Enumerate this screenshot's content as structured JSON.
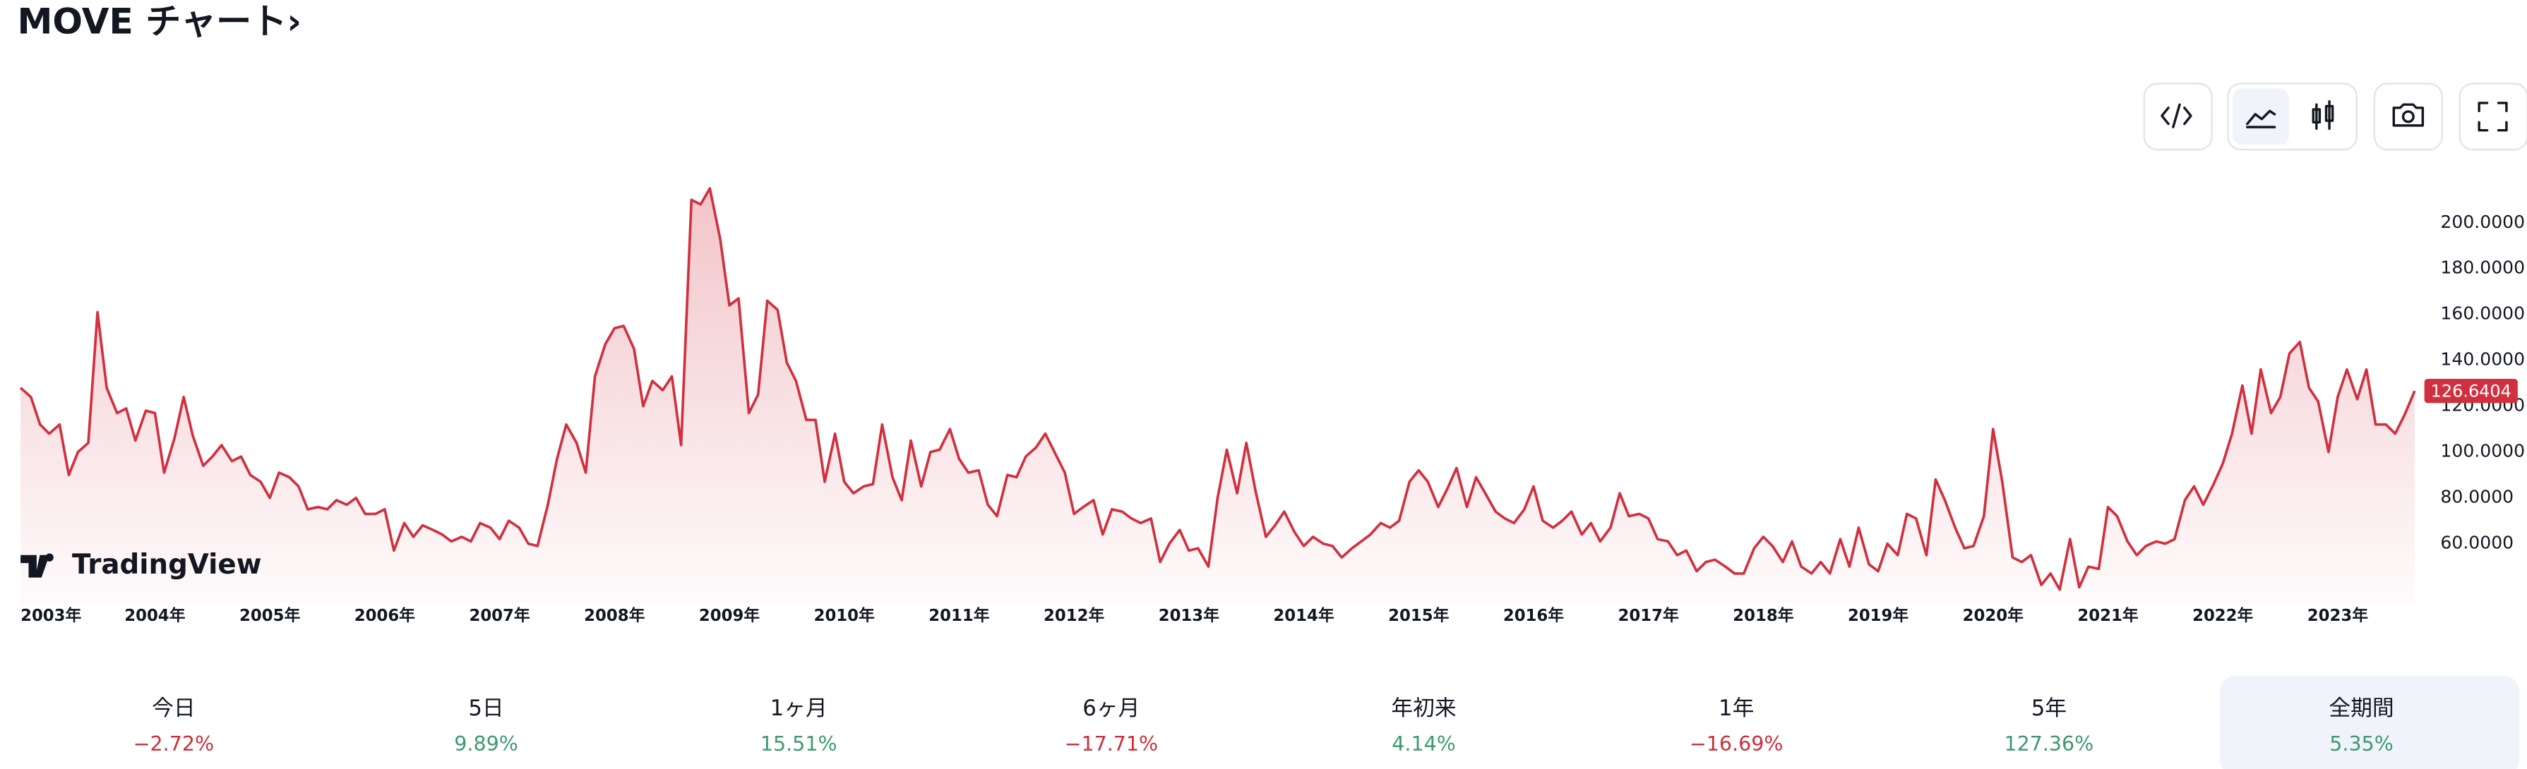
{
  "title": "MOVE チャート›",
  "watermark": "TradingView",
  "chart_data": {
    "type": "line",
    "x": [
      2002.83,
      2002.92,
      2003.0,
      2003.08,
      2003.17,
      2003.25,
      2003.33,
      2003.42,
      2003.5,
      2003.58,
      2003.67,
      2003.75,
      2003.83,
      2003.92,
      2004.0,
      2004.08,
      2004.17,
      2004.25,
      2004.33,
      2004.42,
      2004.5,
      2004.58,
      2004.67,
      2004.75,
      2004.83,
      2004.92,
      2005.0,
      2005.08,
      2005.17,
      2005.25,
      2005.33,
      2005.42,
      2005.5,
      2005.58,
      2005.67,
      2005.75,
      2005.83,
      2005.92,
      2006.0,
      2006.08,
      2006.17,
      2006.25,
      2006.33,
      2006.42,
      2006.5,
      2006.58,
      2006.67,
      2006.75,
      2006.83,
      2006.92,
      2007.0,
      2007.08,
      2007.17,
      2007.25,
      2007.33,
      2007.42,
      2007.5,
      2007.58,
      2007.67,
      2007.75,
      2007.83,
      2007.92,
      2008.0,
      2008.08,
      2008.17,
      2008.25,
      2008.33,
      2008.42,
      2008.5,
      2008.58,
      2008.67,
      2008.75,
      2008.83,
      2008.92,
      2009.0,
      2009.08,
      2009.17,
      2009.25,
      2009.33,
      2009.42,
      2009.5,
      2009.58,
      2009.67,
      2009.75,
      2009.83,
      2009.92,
      2010.0,
      2010.08,
      2010.17,
      2010.25,
      2010.33,
      2010.42,
      2010.5,
      2010.58,
      2010.67,
      2010.75,
      2010.83,
      2010.92,
      2011.0,
      2011.08,
      2011.17,
      2011.25,
      2011.33,
      2011.42,
      2011.5,
      2011.58,
      2011.67,
      2011.75,
      2011.83,
      2011.92,
      2012.0,
      2012.08,
      2012.17,
      2012.25,
      2012.33,
      2012.42,
      2012.5,
      2012.58,
      2012.67,
      2012.75,
      2012.83,
      2012.92,
      2013.0,
      2013.08,
      2013.17,
      2013.25,
      2013.33,
      2013.42,
      2013.5,
      2013.58,
      2013.67,
      2013.75,
      2013.83,
      2013.92,
      2014.0,
      2014.08,
      2014.17,
      2014.25,
      2014.33,
      2014.42,
      2014.5,
      2014.58,
      2014.67,
      2014.75,
      2014.83,
      2014.92,
      2015.0,
      2015.08,
      2015.17,
      2015.25,
      2015.33,
      2015.42,
      2015.5,
      2015.58,
      2015.67,
      2015.75,
      2015.83,
      2015.92,
      2016.0,
      2016.08,
      2016.17,
      2016.25,
      2016.33,
      2016.42,
      2016.5,
      2016.58,
      2016.67,
      2016.75,
      2016.83,
      2016.92,
      2017.0,
      2017.08,
      2017.17,
      2017.25,
      2017.33,
      2017.42,
      2017.5,
      2017.58,
      2017.67,
      2017.75,
      2017.83,
      2017.92,
      2018.0,
      2018.08,
      2018.17,
      2018.25,
      2018.33,
      2018.42,
      2018.5,
      2018.58,
      2018.67,
      2018.75,
      2018.83,
      2018.92,
      2019.0,
      2019.08,
      2019.17,
      2019.25,
      2019.33,
      2019.42,
      2019.5,
      2019.58,
      2019.67,
      2019.75,
      2019.83,
      2019.92,
      2020.0,
      2020.08,
      2020.17,
      2020.25,
      2020.33,
      2020.42,
      2020.5,
      2020.58,
      2020.67,
      2020.75,
      2020.83,
      2020.92,
      2021.0,
      2021.08,
      2021.17,
      2021.25,
      2021.33,
      2021.42,
      2021.5,
      2021.58,
      2021.67,
      2021.75,
      2021.83,
      2021.92,
      2022.0,
      2022.08,
      2022.17,
      2022.25,
      2022.33,
      2022.42,
      2022.5,
      2022.58,
      2022.67,
      2022.75,
      2022.83,
      2022.92,
      2023.0,
      2023.08,
      2023.17,
      2023.25,
      2023.33,
      2023.42,
      2023.5,
      2023.58,
      2023.67
    ],
    "series": [
      {
        "color": "#d0303f",
        "values": [
          128,
          124,
          112,
          108,
          112,
          90,
          100,
          104,
          161,
          128,
          117,
          119,
          105,
          118,
          117,
          91,
          106,
          124,
          107,
          94,
          98,
          103,
          96,
          98,
          90,
          87,
          80,
          91,
          89,
          85,
          75,
          76,
          75,
          79,
          77,
          80,
          73,
          73,
          75,
          57,
          69,
          63,
          68,
          66,
          64,
          61,
          63,
          61,
          69,
          67,
          62,
          70,
          67,
          60,
          59,
          77,
          97,
          112,
          104,
          91,
          133,
          147,
          154,
          155,
          145,
          120,
          131,
          127,
          133,
          103,
          210,
          208,
          215,
          193,
          164,
          167,
          117,
          125,
          166,
          162,
          139,
          131,
          114,
          114,
          87,
          108,
          87,
          82,
          85,
          86,
          112,
          89,
          79,
          105,
          85,
          100,
          101,
          110,
          97,
          91,
          92,
          77,
          72,
          90,
          89,
          98,
          102,
          108,
          100,
          91,
          73,
          76,
          79,
          64,
          75,
          74,
          71,
          69,
          71,
          52,
          60,
          66,
          57,
          58,
          50,
          80,
          101,
          82,
          104,
          83,
          63,
          68,
          74,
          65,
          59,
          63,
          60,
          59,
          54,
          58,
          61,
          64,
          69,
          67,
          70,
          87,
          92,
          87,
          76,
          84,
          93,
          76,
          89,
          82,
          74,
          71,
          69,
          75,
          85,
          70,
          67,
          70,
          74,
          64,
          69,
          61,
          67,
          82,
          72,
          73,
          71,
          62,
          61,
          55,
          57,
          48,
          52,
          53,
          50,
          47,
          47,
          58,
          63,
          59,
          52,
          61,
          50,
          47,
          52,
          47,
          62,
          50,
          67,
          51,
          48,
          60,
          55,
          73,
          71,
          55,
          88,
          79,
          67,
          58,
          59,
          72,
          110,
          87,
          54,
          52,
          55,
          42,
          47,
          40,
          62,
          41,
          50,
          49,
          76,
          72,
          61,
          55,
          59,
          61,
          60,
          62,
          79,
          85,
          77,
          86,
          95,
          108,
          129,
          108,
          136,
          117,
          124,
          143,
          148,
          128,
          122,
          100,
          124,
          136,
          123,
          136,
          112,
          112,
          108,
          116,
          126.6404
        ]
      }
    ],
    "xlim": [
      2002.83,
      2023.67
    ],
    "xticks": [
      {
        "value": 2003,
        "label": "2003年"
      },
      {
        "value": 2004,
        "label": "2004年"
      },
      {
        "value": 2005,
        "label": "2005年"
      },
      {
        "value": 2006,
        "label": "2006年"
      },
      {
        "value": 2007,
        "label": "2007年"
      },
      {
        "value": 2008,
        "label": "2008年"
      },
      {
        "value": 2009,
        "label": "2009年"
      },
      {
        "value": 2010,
        "label": "2010年"
      },
      {
        "value": 2011,
        "label": "2011年"
      },
      {
        "value": 2012,
        "label": "2012年"
      },
      {
        "value": 2013,
        "label": "2013年"
      },
      {
        "value": 2014,
        "label": "2014年"
      },
      {
        "value": 2015,
        "label": "2015年"
      },
      {
        "value": 2016,
        "label": "2016年"
      },
      {
        "value": 2017,
        "label": "2017年"
      },
      {
        "value": 2018,
        "label": "2018年"
      },
      {
        "value": 2019,
        "label": "2019年"
      },
      {
        "value": 2020,
        "label": "2020年"
      },
      {
        "value": 2021,
        "label": "2021年"
      },
      {
        "value": 2022,
        "label": "2022年"
      },
      {
        "value": 2023,
        "label": "2023年"
      }
    ],
    "ylim": [
      34,
      227
    ],
    "yticks": [
      {
        "value": 60,
        "label": "60.0000"
      },
      {
        "value": 80,
        "label": "80.0000"
      },
      {
        "value": 100,
        "label": "100.0000"
      },
      {
        "value": 120,
        "label": "120.0000"
      },
      {
        "value": 140,
        "label": "140.0000"
      },
      {
        "value": 160,
        "label": "160.0000"
      },
      {
        "value": 180,
        "label": "180.0000"
      },
      {
        "value": 200,
        "label": "200.0000"
      }
    ],
    "grid": false
  },
  "periods": [
    {
      "label": "今日",
      "change": "−2.72%"
    },
    {
      "label": "5日",
      "change": "9.89%"
    },
    {
      "label": "1ヶ月",
      "change": "15.51%"
    },
    {
      "label": "6ヶ月",
      "change": "−17.71%"
    },
    {
      "label": "年初来",
      "change": "4.14%"
    },
    {
      "label": "1年",
      "change": "−16.69%"
    },
    {
      "label": "5年",
      "change": "127.36%"
    },
    {
      "label": "全期間",
      "change": "5.35%"
    }
  ],
  "selected_period": 7
}
